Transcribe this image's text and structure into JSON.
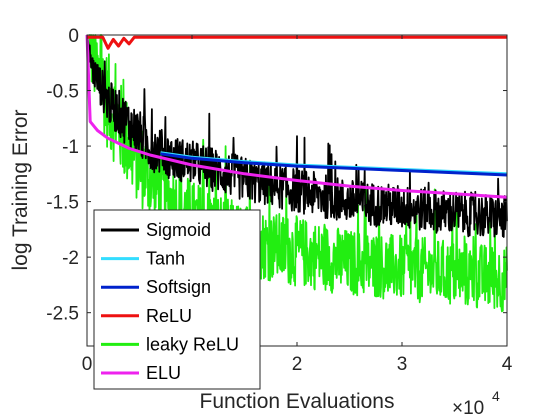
{
  "chart_data": {
    "type": "line",
    "xlabel": "Function Evaluations",
    "ylabel": "log Training Error",
    "x_exponent_label": "×10",
    "x_exponent_power": "4",
    "xlim": [
      0,
      4
    ],
    "ylim": [
      -2.8,
      0
    ],
    "x_ticks": [
      0,
      1,
      2,
      3,
      4
    ],
    "x_tick_labels": [
      "0",
      "",
      "2",
      "3",
      "4"
    ],
    "y_ticks": [
      0,
      -0.5,
      -1,
      -1.5,
      -2,
      -2.5
    ],
    "y_tick_labels": [
      "0",
      "-0.5",
      "-1",
      "-1.5",
      "-2",
      "-2.5"
    ],
    "grid": false,
    "legend_position": "bottom-left",
    "series": [
      {
        "name": "Sigmoid",
        "color": "#000000",
        "noisy": true,
        "x": [
          0,
          0.05,
          0.2,
          0.4,
          0.6,
          0.8,
          1.0,
          1.5,
          2.0,
          2.5,
          3.0,
          3.5,
          4.0
        ],
        "values": [
          0,
          -0.3,
          -0.6,
          -0.8,
          -1.0,
          -1.1,
          -1.15,
          -1.3,
          -1.4,
          -1.5,
          -1.55,
          -1.6,
          -1.65
        ],
        "noise_amplitude": [
          0,
          0.15,
          0.2,
          0.22,
          0.22,
          0.2,
          0.2,
          0.2,
          0.2,
          0.2,
          0.2,
          0.2,
          0.2
        ]
      },
      {
        "name": "Tanh",
        "color": "#33ddff",
        "noisy": false,
        "x": [
          0.7,
          1.0,
          1.5,
          2.0,
          2.5,
          3.0,
          3.5,
          4.0
        ],
        "values": [
          -1.06,
          -1.1,
          -1.14,
          -1.17,
          -1.19,
          -1.21,
          -1.23,
          -1.25
        ]
      },
      {
        "name": "Softsign",
        "color": "#0022cc",
        "noisy": false,
        "x": [
          0.7,
          1.0,
          1.5,
          2.0,
          2.5,
          3.0,
          3.5,
          4.0
        ],
        "values": [
          -1.07,
          -1.11,
          -1.15,
          -1.18,
          -1.2,
          -1.22,
          -1.24,
          -1.26
        ]
      },
      {
        "name": "ReLU",
        "color": "#ee1111",
        "noisy": false,
        "x": [
          0,
          0.15,
          0.2,
          0.25,
          0.3,
          0.35,
          0.4,
          0.45,
          1.0,
          2.0,
          3.0,
          4.0
        ],
        "values": [
          -0.02,
          -0.02,
          -0.12,
          -0.04,
          -0.1,
          -0.03,
          -0.08,
          -0.02,
          -0.02,
          -0.02,
          -0.02,
          -0.02
        ]
      },
      {
        "name": "leaky ReLU",
        "color": "#22ee11",
        "noisy": true,
        "x": [
          0,
          0.05,
          0.2,
          0.4,
          0.6,
          0.8,
          1.0,
          1.5,
          2.0,
          2.5,
          3.0,
          3.5,
          4.0
        ],
        "values": [
          0,
          -0.2,
          -0.6,
          -1.0,
          -1.3,
          -1.5,
          -1.65,
          -1.85,
          -1.95,
          -2.05,
          -2.1,
          -2.15,
          -2.2
        ],
        "noise_amplitude": [
          0,
          0.35,
          0.45,
          0.4,
          0.38,
          0.36,
          0.35,
          0.32,
          0.32,
          0.3,
          0.3,
          0.3,
          0.3
        ]
      },
      {
        "name": "ELU",
        "color": "#ee22ee",
        "noisy": false,
        "x": [
          0,
          0.03,
          0.1,
          0.2,
          0.4,
          0.6,
          1.0,
          1.5,
          2.0,
          2.5,
          3.0,
          3.5,
          4.0
        ],
        "values": [
          0,
          -0.78,
          -0.86,
          -0.93,
          -1.02,
          -1.08,
          -1.17,
          -1.25,
          -1.31,
          -1.36,
          -1.4,
          -1.43,
          -1.46
        ]
      }
    ]
  }
}
